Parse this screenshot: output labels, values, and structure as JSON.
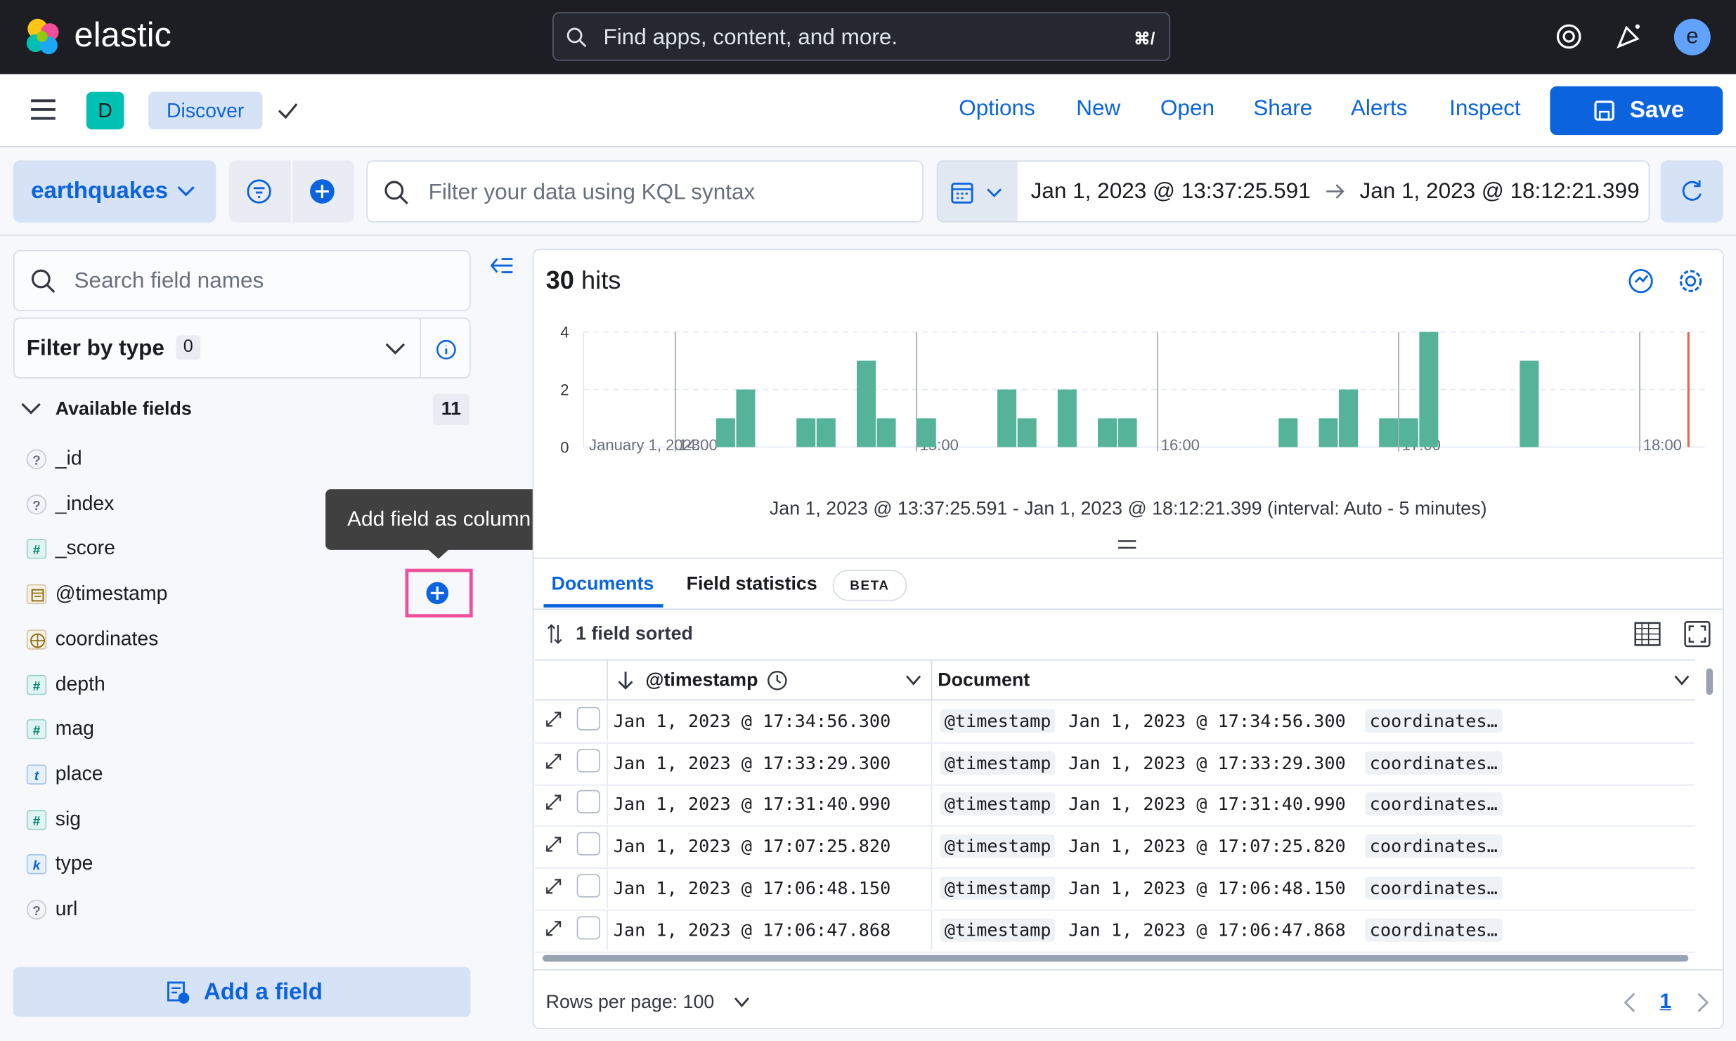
{
  "header": {
    "logo": "elastic",
    "search_placeholder": "Find apps, content, and more.",
    "shortcut": "⌘/",
    "avatar": "e"
  },
  "app_bar": {
    "space": "D",
    "app": "Discover",
    "menu": [
      "Options",
      "New",
      "Open",
      "Share",
      "Alerts",
      "Inspect"
    ],
    "save": "Save"
  },
  "query_bar": {
    "data_view": "earthquakes",
    "kql_placeholder": "Filter your data using KQL syntax",
    "start": "Jan 1, 2023 @ 13:37:25.591",
    "end": "Jan 1, 2023 @ 18:12:21.399"
  },
  "sidebar": {
    "search_placeholder": "Search field names",
    "filter_label": "Filter by type",
    "filter_count": 0,
    "section": "Available fields",
    "field_count": 11,
    "fields": [
      {
        "type": "?",
        "name": "_id"
      },
      {
        "type": "?",
        "name": "_index"
      },
      {
        "type": "#",
        "name": "_score"
      },
      {
        "type": "date",
        "name": "@timestamp"
      },
      {
        "type": "geo",
        "name": "coordinates"
      },
      {
        "type": "#",
        "name": "depth"
      },
      {
        "type": "#",
        "name": "mag"
      },
      {
        "type": "t",
        "name": "place"
      },
      {
        "type": "#",
        "name": "sig"
      },
      {
        "type": "k",
        "name": "type"
      },
      {
        "type": "?",
        "name": "url"
      }
    ],
    "tooltip": "Add field as column",
    "add_field": "Add a field"
  },
  "chart_data": {
    "type": "bar",
    "color": "#54b399",
    "x": [
      "14:10",
      "14:15",
      "14:30",
      "14:35",
      "14:45",
      "14:50",
      "15:00",
      "15:20",
      "15:25",
      "15:35",
      "15:45",
      "15:50",
      "16:30",
      "16:40",
      "16:45",
      "16:55",
      "17:00",
      "17:05",
      "17:30"
    ],
    "values": [
      1,
      2,
      1,
      1,
      3,
      1,
      1,
      2,
      1,
      2,
      1,
      1,
      1,
      1,
      2,
      1,
      1,
      4,
      3
    ],
    "ylim": [
      0,
      4
    ],
    "yticks": [
      0,
      2,
      4
    ],
    "xticks": [
      "14:00",
      "15:00",
      "16:00",
      "17:00",
      "18:00"
    ],
    "date_label": "January 1, 2023",
    "grid": true
  },
  "results": {
    "hits": 30,
    "hits_label": "hits",
    "interval_label": "Jan 1, 2023 @ 13:37:25.591 - Jan 1, 2023 @ 18:12:21.399 (interval: Auto - 5 minutes)",
    "tabs": [
      "Documents",
      "Field statistics"
    ],
    "beta": "BETA",
    "sorted": "1 field sorted",
    "columns": [
      "@timestamp",
      "Document"
    ],
    "rows": [
      {
        "timestamp": "Jan 1, 2023 @ 17:34:56.300",
        "key": "@timestamp",
        "value": "Jan 1, 2023 @ 17:34:56.300",
        "more": "coordinates…"
      },
      {
        "timestamp": "Jan 1, 2023 @ 17:33:29.300",
        "key": "@timestamp",
        "value": "Jan 1, 2023 @ 17:33:29.300",
        "more": "coordinates…"
      },
      {
        "timestamp": "Jan 1, 2023 @ 17:31:40.990",
        "key": "@timestamp",
        "value": "Jan 1, 2023 @ 17:31:40.990",
        "more": "coordinates…"
      },
      {
        "timestamp": "Jan 1, 2023 @ 17:07:25.820",
        "key": "@timestamp",
        "value": "Jan 1, 2023 @ 17:07:25.820",
        "more": "coordinates…"
      },
      {
        "timestamp": "Jan 1, 2023 @ 17:06:48.150",
        "key": "@timestamp",
        "value": "Jan 1, 2023 @ 17:06:48.150",
        "more": "coordinates…"
      },
      {
        "timestamp": "Jan 1, 2023 @ 17:06:47.868",
        "key": "@timestamp",
        "value": "Jan 1, 2023 @ 17:06:47.868",
        "more": "coordinates…"
      }
    ],
    "rows_per_page": "Rows per page: 100",
    "page": 1
  }
}
